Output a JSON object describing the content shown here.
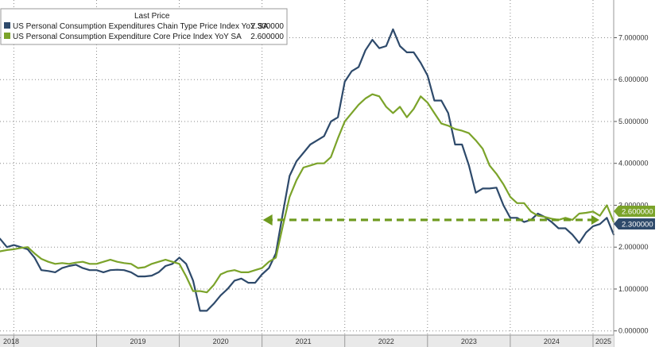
{
  "colors": {
    "headline": "#2e4a6b",
    "core": "#7ba32a",
    "arrow": "#6e9a1e",
    "grid": "#8a8a8a",
    "axis_band": "#e9e9e9"
  },
  "chart_data": {
    "type": "line",
    "title": "",
    "xlabel": "",
    "ylabel": "",
    "ylim": [
      -0.1,
      7.9
    ],
    "xlim": [
      2017.833,
      2025.25
    ],
    "grid": true,
    "x_ticks": [
      {
        "label": "2018",
        "x": 2018.0
      },
      {
        "label": "2019",
        "x": 2019.0
      },
      {
        "label": "2020",
        "x": 2020.0
      },
      {
        "label": "2021",
        "x": 2021.0
      },
      {
        "label": "2022",
        "x": 2022.0
      },
      {
        "label": "2023",
        "x": 2023.0
      },
      {
        "label": "2024",
        "x": 2024.0
      },
      {
        "label": "2025",
        "x": 2025.0
      }
    ],
    "y_ticks": [
      {
        "label": "7.000000",
        "value": 7.0
      },
      {
        "label": "6.000000",
        "value": 6.0
      },
      {
        "label": "5.000000",
        "value": 5.0
      },
      {
        "label": "4.000000",
        "value": 4.0
      },
      {
        "label": "3.000000",
        "value": 3.0
      },
      {
        "label": "2.000000",
        "value": 2.0
      },
      {
        "label": "1.000000",
        "value": 1.0
      },
      {
        "label": "0.000000",
        "value": 0.0
      }
    ],
    "legend": {
      "title": "Last Price",
      "position": "top-left",
      "entries": [
        {
          "name": "US Personal Consumption Expenditures Chain Type Price Index YoY SA",
          "value": "2.300000"
        },
        {
          "name": "US Personal Consumption Expenditure Core Price Index YoY SA",
          "value": "2.600000"
        }
      ]
    },
    "last_value_tags": [
      {
        "label": "2.600000",
        "value": 2.6,
        "series": "core"
      },
      {
        "label": "2.300000",
        "value": 2.3,
        "series": "headline"
      }
    ],
    "annotation": {
      "type": "dashed-arrow",
      "from_x": 2025.0,
      "to_x": 2021.0,
      "y": 2.65
    },
    "series": [
      {
        "name": "US Personal Consumption Expenditures Chain Type Price Index YoY SA",
        "key": "headline",
        "points": [
          [
            2017.833,
            2.2
          ],
          [
            2017.917,
            2.0
          ],
          [
            2018.0,
            2.05
          ],
          [
            2018.083,
            2.0
          ],
          [
            2018.167,
            1.95
          ],
          [
            2018.25,
            1.75
          ],
          [
            2018.333,
            1.45
          ],
          [
            2018.417,
            1.43
          ],
          [
            2018.5,
            1.4
          ],
          [
            2018.583,
            1.5
          ],
          [
            2018.667,
            1.55
          ],
          [
            2018.75,
            1.58
          ],
          [
            2018.833,
            1.5
          ],
          [
            2018.917,
            1.45
          ],
          [
            2019.0,
            1.45
          ],
          [
            2019.083,
            1.4
          ],
          [
            2019.167,
            1.45
          ],
          [
            2019.25,
            1.46
          ],
          [
            2019.333,
            1.45
          ],
          [
            2019.417,
            1.4
          ],
          [
            2019.5,
            1.3
          ],
          [
            2019.583,
            1.3
          ],
          [
            2019.667,
            1.32
          ],
          [
            2019.75,
            1.4
          ],
          [
            2019.833,
            1.55
          ],
          [
            2019.917,
            1.6
          ],
          [
            2020.0,
            1.75
          ],
          [
            2020.083,
            1.6
          ],
          [
            2020.167,
            1.2
          ],
          [
            2020.25,
            0.48
          ],
          [
            2020.333,
            0.48
          ],
          [
            2020.417,
            0.65
          ],
          [
            2020.5,
            0.85
          ],
          [
            2020.583,
            1.0
          ],
          [
            2020.667,
            1.2
          ],
          [
            2020.75,
            1.25
          ],
          [
            2020.833,
            1.15
          ],
          [
            2020.917,
            1.15
          ],
          [
            2021.0,
            1.35
          ],
          [
            2021.083,
            1.5
          ],
          [
            2021.167,
            1.85
          ],
          [
            2021.25,
            2.8
          ],
          [
            2021.333,
            3.7
          ],
          [
            2021.417,
            4.05
          ],
          [
            2021.5,
            4.25
          ],
          [
            2021.583,
            4.45
          ],
          [
            2021.667,
            4.55
          ],
          [
            2021.75,
            4.65
          ],
          [
            2021.833,
            5.0
          ],
          [
            2021.917,
            5.1
          ],
          [
            2022.0,
            5.95
          ],
          [
            2022.083,
            6.2
          ],
          [
            2022.167,
            6.3
          ],
          [
            2022.25,
            6.7
          ],
          [
            2022.333,
            6.95
          ],
          [
            2022.417,
            6.75
          ],
          [
            2022.5,
            6.8
          ],
          [
            2022.583,
            7.2
          ],
          [
            2022.667,
            6.8
          ],
          [
            2022.75,
            6.65
          ],
          [
            2022.833,
            6.65
          ],
          [
            2022.917,
            6.4
          ],
          [
            2023.0,
            6.1
          ],
          [
            2023.083,
            5.5
          ],
          [
            2023.167,
            5.5
          ],
          [
            2023.25,
            5.2
          ],
          [
            2023.333,
            4.45
          ],
          [
            2023.417,
            4.45
          ],
          [
            2023.5,
            3.95
          ],
          [
            2023.583,
            3.3
          ],
          [
            2023.667,
            3.4
          ],
          [
            2023.75,
            3.4
          ],
          [
            2023.833,
            3.42
          ],
          [
            2023.917,
            3.0
          ],
          [
            2024.0,
            2.7
          ],
          [
            2024.083,
            2.7
          ],
          [
            2024.167,
            2.6
          ],
          [
            2024.25,
            2.65
          ],
          [
            2024.333,
            2.8
          ],
          [
            2024.417,
            2.72
          ],
          [
            2024.5,
            2.6
          ],
          [
            2024.583,
            2.45
          ],
          [
            2024.667,
            2.45
          ],
          [
            2024.75,
            2.3
          ],
          [
            2024.833,
            2.1
          ],
          [
            2024.917,
            2.35
          ],
          [
            2025.0,
            2.5
          ],
          [
            2025.083,
            2.55
          ],
          [
            2025.167,
            2.7
          ],
          [
            2025.25,
            2.3
          ]
        ]
      },
      {
        "name": "US Personal Consumption Expenditure Core Price Index YoY SA",
        "key": "core",
        "points": [
          [
            2017.833,
            1.9
          ],
          [
            2017.917,
            1.93
          ],
          [
            2018.0,
            1.95
          ],
          [
            2018.083,
            1.98
          ],
          [
            2018.167,
            2.0
          ],
          [
            2018.25,
            1.85
          ],
          [
            2018.333,
            1.72
          ],
          [
            2018.417,
            1.65
          ],
          [
            2018.5,
            1.6
          ],
          [
            2018.583,
            1.62
          ],
          [
            2018.667,
            1.6
          ],
          [
            2018.75,
            1.63
          ],
          [
            2018.833,
            1.65
          ],
          [
            2018.917,
            1.6
          ],
          [
            2019.0,
            1.6
          ],
          [
            2019.083,
            1.65
          ],
          [
            2019.167,
            1.7
          ],
          [
            2019.25,
            1.65
          ],
          [
            2019.333,
            1.62
          ],
          [
            2019.417,
            1.6
          ],
          [
            2019.5,
            1.5
          ],
          [
            2019.583,
            1.52
          ],
          [
            2019.667,
            1.6
          ],
          [
            2019.75,
            1.65
          ],
          [
            2019.833,
            1.7
          ],
          [
            2019.917,
            1.65
          ],
          [
            2020.0,
            1.6
          ],
          [
            2020.083,
            1.3
          ],
          [
            2020.167,
            0.95
          ],
          [
            2020.25,
            0.95
          ],
          [
            2020.333,
            0.92
          ],
          [
            2020.417,
            1.1
          ],
          [
            2020.5,
            1.35
          ],
          [
            2020.583,
            1.42
          ],
          [
            2020.667,
            1.45
          ],
          [
            2020.75,
            1.4
          ],
          [
            2020.833,
            1.4
          ],
          [
            2020.917,
            1.45
          ],
          [
            2021.0,
            1.5
          ],
          [
            2021.083,
            1.65
          ],
          [
            2021.167,
            1.75
          ],
          [
            2021.25,
            2.5
          ],
          [
            2021.333,
            3.2
          ],
          [
            2021.417,
            3.6
          ],
          [
            2021.5,
            3.9
          ],
          [
            2021.583,
            3.95
          ],
          [
            2021.667,
            4.0
          ],
          [
            2021.75,
            4.0
          ],
          [
            2021.833,
            4.15
          ],
          [
            2021.917,
            4.6
          ],
          [
            2022.0,
            5.0
          ],
          [
            2022.083,
            5.2
          ],
          [
            2022.167,
            5.4
          ],
          [
            2022.25,
            5.55
          ],
          [
            2022.333,
            5.65
          ],
          [
            2022.417,
            5.6
          ],
          [
            2022.5,
            5.35
          ],
          [
            2022.583,
            5.2
          ],
          [
            2022.667,
            5.35
          ],
          [
            2022.75,
            5.1
          ],
          [
            2022.833,
            5.3
          ],
          [
            2022.917,
            5.6
          ],
          [
            2023.0,
            5.45
          ],
          [
            2023.083,
            5.2
          ],
          [
            2023.167,
            4.95
          ],
          [
            2023.25,
            4.9
          ],
          [
            2023.333,
            4.82
          ],
          [
            2023.417,
            4.78
          ],
          [
            2023.5,
            4.72
          ],
          [
            2023.583,
            4.55
          ],
          [
            2023.667,
            4.35
          ],
          [
            2023.75,
            3.95
          ],
          [
            2023.833,
            3.75
          ],
          [
            2023.917,
            3.5
          ],
          [
            2024.0,
            3.2
          ],
          [
            2024.083,
            3.05
          ],
          [
            2024.167,
            3.05
          ],
          [
            2024.25,
            2.85
          ],
          [
            2024.333,
            2.75
          ],
          [
            2024.417,
            2.72
          ],
          [
            2024.5,
            2.68
          ],
          [
            2024.583,
            2.65
          ],
          [
            2024.667,
            2.7
          ],
          [
            2024.75,
            2.65
          ],
          [
            2024.833,
            2.8
          ],
          [
            2024.917,
            2.82
          ],
          [
            2025.0,
            2.85
          ],
          [
            2025.083,
            2.75
          ],
          [
            2025.167,
            3.0
          ],
          [
            2025.25,
            2.6
          ]
        ]
      }
    ]
  }
}
